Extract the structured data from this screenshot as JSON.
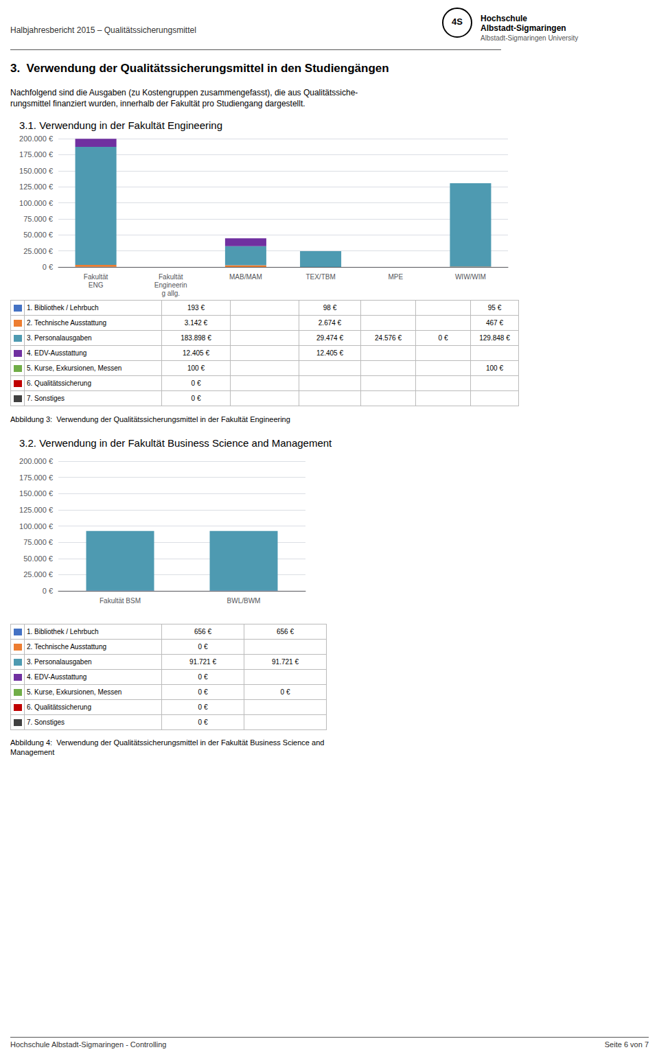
{
  "chart_data": [
    {
      "type": "bar",
      "stacked": true,
      "grid": true,
      "title": "3.1. Verwendung in der Fakultät Engineering",
      "subtitle": "Abbildung 3:  Verwendung der Qualitätssicherungsmittel in der Fakultät Engineering",
      "annotations": [
        "Halbjahresbericht 2015 – Qualitätssicherungsmittel",
        "4S",
        "Hochschule",
        "Albstadt-Sigmaringen",
        "Albstadt-Sigmaringen University",
        "3.  Verwendung der Qualitätssicherungsmittel in den Studiengängen",
        "Nachfolgend sind die Ausgaben (zu Kostengruppen zusammengefasst), die aus Qualitätssiche-",
        "rungsmittel finanziert wurden, innerhalb der Fakultät pro Studiengang dargestellt.",
        "Hochschule Albstadt-Sigmaringen - Controlling",
        "Seite 6 von 7"
      ],
      "categories": [
        "Fakultät\nENG",
        "Fakultät\nEngineerin\ng allg.",
        "MAB/MAM",
        "TEX/TBM",
        "MPE",
        "WIW/WIM"
      ],
      "series": [
        {
          "name": "1. Bibliothek / Lehrbuch",
          "color": "#4472c4",
          "values": [
            193,
            0,
            98,
            0,
            0,
            95
          ],
          "value_labels": [
            "193 €",
            null,
            "98 €",
            null,
            null,
            "95 €"
          ]
        },
        {
          "name": "2. Technische Ausstattung",
          "color": "#ed7d31",
          "values": [
            3142,
            0,
            2674,
            0,
            0,
            467
          ],
          "value_labels": [
            "3.142 €",
            null,
            "2.674 €",
            null,
            null,
            "467 €"
          ]
        },
        {
          "name": "3. Personalausgaben",
          "color": "#4e9ab1",
          "values": [
            183898,
            0,
            29474,
            24576,
            0,
            129848
          ],
          "value_labels": [
            "183.898 €",
            null,
            "29.474 €",
            "24.576 €",
            "0 €",
            "129.848 €"
          ]
        },
        {
          "name": "4. EDV-Ausstattung",
          "color": "#7030a0",
          "values": [
            12405,
            0,
            12405,
            0,
            0,
            0
          ],
          "value_labels": [
            "12.405 €",
            null,
            "12.405 €",
            null,
            null,
            null
          ]
        },
        {
          "name": "5. Kurse, Exkursionen, Messen",
          "color": "#70ad47",
          "values": [
            100,
            0,
            0,
            0,
            0,
            100
          ],
          "value_labels": [
            "100 €",
            null,
            null,
            null,
            null,
            "100 €"
          ]
        },
        {
          "name": "6. Qualitätssicherung",
          "color": "#c00000",
          "values": [
            0,
            0,
            0,
            0,
            0,
            0
          ],
          "value_labels": [
            "0 €",
            null,
            null,
            null,
            null,
            null
          ]
        },
        {
          "name": "7. Sonstiges",
          "color": "#404040",
          "values": [
            0,
            0,
            0,
            0,
            0,
            0
          ],
          "value_labels": [
            "0 €",
            null,
            null,
            null,
            null,
            null
          ]
        }
      ],
      "ylim": [
        0,
        200000
      ],
      "yticks": [
        {
          "value": 0,
          "label": "0 €"
        },
        {
          "value": 25000,
          "label": "25.000 €"
        },
        {
          "value": 50000,
          "label": "50.000 €"
        },
        {
          "value": 75000,
          "label": "75.000 €"
        },
        {
          "value": 100000,
          "label": "100.000 €"
        },
        {
          "value": 125000,
          "label": "125.000 €"
        },
        {
          "value": 150000,
          "label": "150.000 €"
        },
        {
          "value": 175000,
          "label": "175.000 €"
        },
        {
          "value": 200000,
          "label": "200.000 €"
        }
      ]
    },
    {
      "type": "bar",
      "stacked": true,
      "grid": true,
      "title": "3.2. Verwendung in der Fakultät Business Science and Management",
      "subtitle": "Abbildung 4:  Verwendung der Qualitätssicherungsmittel in der Fakultät Business Science and\nManagement",
      "categories": [
        "Fakultät BSM",
        "BWL/BWM"
      ],
      "series": [
        {
          "name": "1. Bibliothek / Lehrbuch",
          "color": "#4472c4",
          "values": [
            656,
            656
          ],
          "value_labels": [
            "656 €",
            "656 €"
          ]
        },
        {
          "name": "2. Technische Ausstattung",
          "color": "#ed7d31",
          "values": [
            0,
            0
          ],
          "value_labels": [
            "0 €",
            null
          ]
        },
        {
          "name": "3. Personalausgaben",
          "color": "#4e9ab1",
          "values": [
            91721,
            91721
          ],
          "value_labels": [
            "91.721 €",
            "91.721 €"
          ]
        },
        {
          "name": "4. EDV-Ausstattung",
          "color": "#7030a0",
          "values": [
            0,
            0
          ],
          "value_labels": [
            "0 €",
            null
          ]
        },
        {
          "name": "5. Kurse, Exkursionen, Messen",
          "color": "#70ad47",
          "values": [
            0,
            0
          ],
          "value_labels": [
            "0 €",
            "0 €"
          ]
        },
        {
          "name": "6. Qualitätssicherung",
          "color": "#c00000",
          "values": [
            0,
            0
          ],
          "value_labels": [
            "0 €",
            null
          ]
        },
        {
          "name": "7. Sonstiges",
          "color": "#404040",
          "values": [
            0,
            0
          ],
          "value_labels": [
            "0 €",
            null
          ]
        }
      ],
      "ylim": [
        0,
        200000
      ],
      "yticks": [
        {
          "value": 0,
          "label": "0 €"
        },
        {
          "value": 25000,
          "label": "25.000 €"
        },
        {
          "value": 50000,
          "label": "50.000 €"
        },
        {
          "value": 75000,
          "label": "75.000 €"
        },
        {
          "value": 100000,
          "label": "100.000 €"
        },
        {
          "value": 125000,
          "label": "125.000 €"
        },
        {
          "value": 150000,
          "label": "150.000 €"
        },
        {
          "value": 175000,
          "label": "175.000 €"
        },
        {
          "value": 200000,
          "label": "200.000 €"
        }
      ]
    }
  ]
}
